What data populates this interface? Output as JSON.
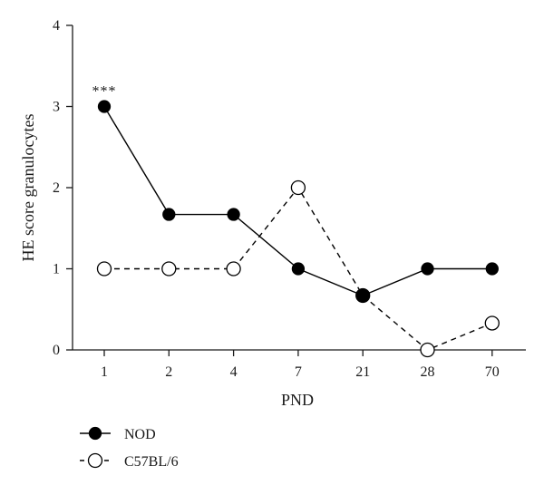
{
  "chart_data": {
    "type": "line",
    "xlabel": "PND",
    "ylabel": "HE score granulocytes",
    "categories": [
      "1",
      "2",
      "4",
      "7",
      "21",
      "28",
      "70"
    ],
    "ylim": [
      0,
      4
    ],
    "yticks": [
      "0",
      "1",
      "2",
      "3",
      "4"
    ],
    "grid": false,
    "legend_position": "bottom-left",
    "series": [
      {
        "name": "NOD",
        "values": [
          3,
          1.67,
          1.67,
          1,
          0.67,
          1,
          1
        ],
        "marker": "filled-circle",
        "line_style": "solid",
        "color": "#000000"
      },
      {
        "name": "C57BL/6",
        "values": [
          1,
          1,
          1,
          2,
          0.67,
          0,
          0.33
        ],
        "marker": "open-circle",
        "line_style": "dashed",
        "color": "#000000"
      }
    ],
    "annotations": [
      {
        "text": "***",
        "category": "1",
        "series": "NOD"
      }
    ]
  }
}
